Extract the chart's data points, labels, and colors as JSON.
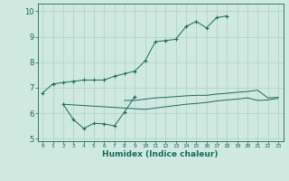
{
  "xlabel": "Humidex (Indice chaleur)",
  "ylabel": "",
  "xlim": [
    -0.5,
    23.5
  ],
  "ylim": [
    4.9,
    10.3
  ],
  "yticks": [
    5,
    6,
    7,
    8,
    9,
    10
  ],
  "xticks": [
    0,
    1,
    2,
    3,
    4,
    5,
    6,
    7,
    8,
    9,
    10,
    11,
    12,
    13,
    14,
    15,
    16,
    17,
    18,
    19,
    20,
    21,
    22,
    23
  ],
  "bg_color": "#cfe8e0",
  "grid_color": "#b0d0c8",
  "line_color": "#1a6b5a",
  "lines": [
    {
      "x": [
        0,
        1,
        2,
        3,
        4,
        5,
        6,
        7,
        8,
        9,
        10,
        11,
        12,
        13,
        14,
        15,
        16,
        17,
        18
      ],
      "y": [
        6.8,
        7.15,
        7.2,
        7.25,
        7.3,
        7.3,
        7.3,
        7.45,
        7.55,
        7.65,
        8.05,
        8.8,
        8.85,
        8.9,
        9.4,
        9.6,
        9.35,
        9.75,
        9.82
      ],
      "marker": true
    },
    {
      "x": [
        8,
        9,
        10,
        11,
        12,
        13,
        14,
        15,
        16,
        17,
        18,
        19,
        20,
        21,
        22,
        23
      ],
      "y": [
        6.5,
        6.5,
        6.55,
        6.6,
        6.62,
        6.65,
        6.68,
        6.7,
        6.7,
        6.75,
        6.78,
        6.82,
        6.85,
        6.9,
        6.6,
        6.62
      ],
      "marker": false
    },
    {
      "x": [
        2,
        3,
        4,
        5,
        6,
        7,
        8,
        9
      ],
      "y": [
        6.35,
        5.75,
        5.4,
        5.6,
        5.58,
        5.5,
        6.05,
        6.65
      ],
      "marker": true
    },
    {
      "x": [
        2,
        10,
        11,
        12,
        13,
        14,
        15,
        16,
        17,
        18,
        19,
        20,
        21,
        22,
        23
      ],
      "y": [
        6.35,
        6.15,
        6.2,
        6.25,
        6.3,
        6.35,
        6.38,
        6.42,
        6.48,
        6.52,
        6.55,
        6.6,
        6.5,
        6.52,
        6.58
      ],
      "marker": false
    }
  ]
}
